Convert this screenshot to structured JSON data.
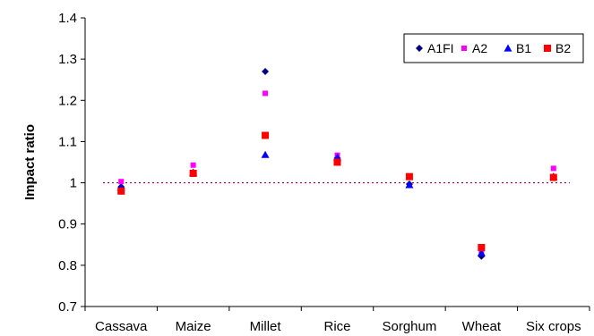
{
  "chart_data": {
    "type": "scatter",
    "title": "",
    "xlabel": "",
    "ylabel": "Impact ratio",
    "categories": [
      "Cassava",
      "Maize",
      "Millet",
      "Rice",
      "Sorghum",
      "Wheat",
      "Six crops"
    ],
    "yticks": [
      "0.7",
      "0.8",
      "0.9",
      "1",
      "1.1",
      "1.2",
      "1.3",
      "1.4"
    ],
    "ylim": [
      0.7,
      1.4
    ],
    "grid": false,
    "legend_position": "top-right",
    "reference_line": {
      "y": 1.0,
      "style": "dotted",
      "color": "#990066"
    },
    "series": [
      {
        "name": "A1FI",
        "marker": "diamond",
        "color": "#000080",
        "values": [
          0.99,
          1.025,
          1.27,
          1.06,
          0.997,
          0.822,
          1.015
        ]
      },
      {
        "name": "A2",
        "marker": "square-small",
        "color": "#FF00FF",
        "values": [
          1.003,
          1.043,
          1.217,
          1.067,
          1.015,
          0.835,
          1.035
        ]
      },
      {
        "name": "B1",
        "marker": "triangle",
        "color": "#0000FF",
        "values": [
          0.988,
          1.025,
          1.068,
          1.062,
          0.995,
          0.83,
          1.015
        ]
      },
      {
        "name": "B2",
        "marker": "square",
        "color": "#FF0000",
        "values": [
          0.98,
          1.023,
          1.115,
          1.05,
          1.015,
          0.843,
          1.013
        ]
      }
    ]
  }
}
